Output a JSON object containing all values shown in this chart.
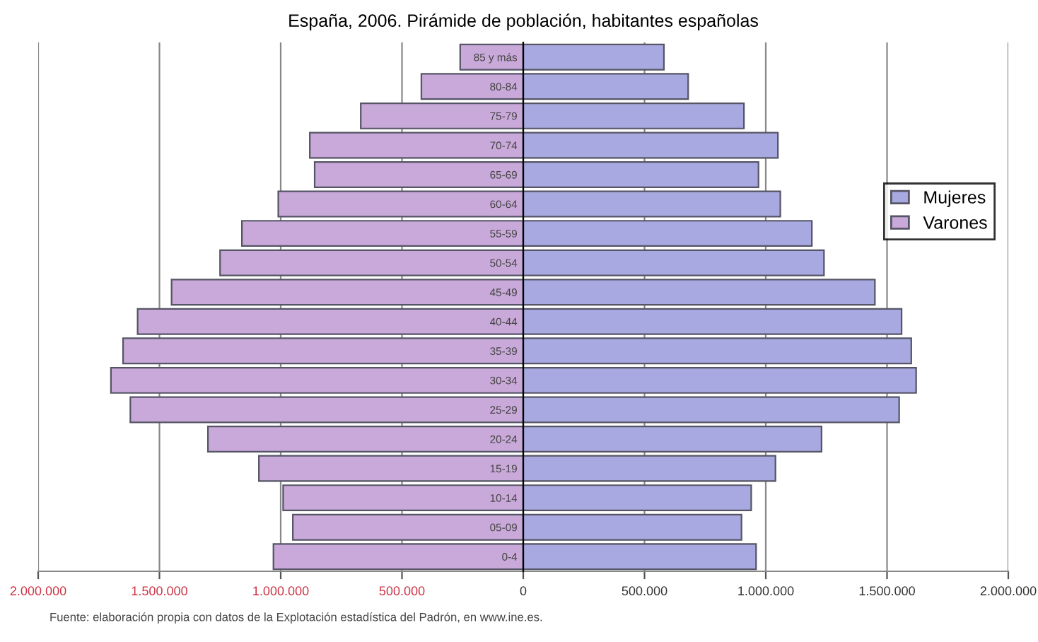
{
  "chart_data": {
    "type": "bar",
    "orientation": "horizontal",
    "stacked": true,
    "title": "España, 2006. Pirámide de población, habitantes españolas",
    "categories": [
      "85 y más",
      "80-84",
      "75-79",
      "70-74",
      "65-69",
      "60-64",
      "55-59",
      "50-54",
      "45-49",
      "40-44",
      "35-39",
      "30-34",
      "25-29",
      "20-24",
      "15-19",
      "10-14",
      "05-09",
      "0-4"
    ],
    "series": [
      {
        "name": "Varones",
        "color": "#c9a9d9",
        "values": [
          -260000,
          -420000,
          -670000,
          -880000,
          -860000,
          -1010000,
          -1160000,
          -1250000,
          -1450000,
          -1590000,
          -1650000,
          -1700000,
          -1620000,
          -1300000,
          -1090000,
          -990000,
          -950000,
          -1030000
        ]
      },
      {
        "name": "Mujeres",
        "color": "#a9a9e1",
        "values": [
          580000,
          680000,
          910000,
          1050000,
          970000,
          1060000,
          1190000,
          1240000,
          1450000,
          1560000,
          1600000,
          1620000,
          1550000,
          1230000,
          1040000,
          940000,
          900000,
          960000
        ]
      }
    ],
    "xlim": [
      -2000000,
      2000000
    ],
    "xticks": [
      {
        "value": -2000000,
        "label": "2.000.000"
      },
      {
        "value": -1500000,
        "label": "1.500.000"
      },
      {
        "value": -1000000,
        "label": "1.000.000"
      },
      {
        "value": -500000,
        "label": "500.000"
      },
      0,
      {
        "value": 500000,
        "label": "500.000"
      },
      {
        "value": 1000000,
        "label": "1.000.000"
      },
      {
        "value": 1500000,
        "label": "1.500.000"
      },
      {
        "value": 2000000,
        "label": "2.000.000"
      }
    ],
    "grid": "x",
    "legend": "top right",
    "annotations": [
      "Fuente: elaboración propia con datos de la Explotación estadística del Padrón, en www.ine.es."
    ]
  }
}
